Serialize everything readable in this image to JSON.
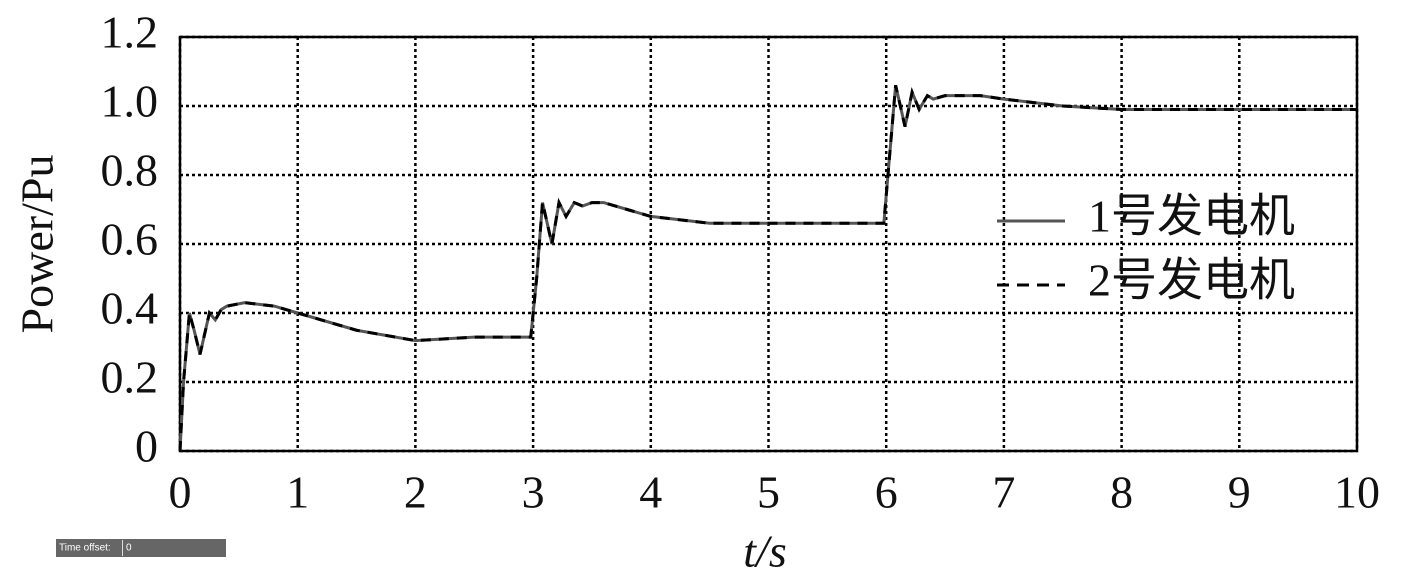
{
  "chart_data": {
    "type": "line",
    "xlabel": "t/s",
    "ylabel": "Power/Pu",
    "x": [
      0,
      0.03,
      0.08,
      0.12,
      0.17,
      0.21,
      0.25,
      0.3,
      0.35,
      0.4,
      0.55,
      0.8,
      1.0,
      1.5,
      2.0,
      2.5,
      2.98,
      3.03,
      3.08,
      3.12,
      3.16,
      3.22,
      3.28,
      3.35,
      3.42,
      3.5,
      3.6,
      3.8,
      4.0,
      4.5,
      5.0,
      5.5,
      5.98,
      6.03,
      6.08,
      6.12,
      6.16,
      6.22,
      6.28,
      6.35,
      6.4,
      6.5,
      6.8,
      7.0,
      7.5,
      8.0,
      9.0,
      10.0
    ],
    "series": [
      {
        "name": "1号发电机",
        "color": "#555555",
        "dash": false,
        "values": [
          0,
          0.2,
          0.4,
          0.35,
          0.28,
          0.34,
          0.4,
          0.38,
          0.41,
          0.42,
          0.43,
          0.42,
          0.4,
          0.35,
          0.32,
          0.33,
          0.33,
          0.5,
          0.72,
          0.66,
          0.6,
          0.72,
          0.68,
          0.72,
          0.71,
          0.72,
          0.72,
          0.7,
          0.68,
          0.66,
          0.66,
          0.66,
          0.66,
          0.86,
          1.06,
          1.0,
          0.94,
          1.04,
          0.99,
          1.03,
          1.02,
          1.03,
          1.03,
          1.02,
          1.0,
          0.99,
          0.99,
          0.99
        ]
      },
      {
        "name": "2号发电机",
        "color": "#000000",
        "dash": true,
        "values": [
          0,
          0.2,
          0.4,
          0.35,
          0.28,
          0.34,
          0.4,
          0.38,
          0.41,
          0.42,
          0.43,
          0.42,
          0.4,
          0.35,
          0.32,
          0.33,
          0.33,
          0.5,
          0.72,
          0.66,
          0.6,
          0.72,
          0.68,
          0.72,
          0.71,
          0.72,
          0.72,
          0.7,
          0.68,
          0.66,
          0.66,
          0.66,
          0.66,
          0.86,
          1.06,
          1.0,
          0.94,
          1.04,
          0.99,
          1.03,
          1.02,
          1.03,
          1.03,
          1.02,
          1.0,
          0.99,
          0.99,
          0.99
        ]
      }
    ],
    "xlim": [
      0,
      10
    ],
    "xticks": [
      0,
      1,
      2,
      3,
      4,
      5,
      6,
      7,
      8,
      9,
      10
    ],
    "ylim": [
      0,
      1.2
    ],
    "yticks": [
      0,
      0.2,
      0.4,
      0.6,
      0.8,
      {
        "value": 1,
        "label": "1.0"
      },
      1.2
    ],
    "grid": true,
    "legend": "right"
  },
  "time_offset": {
    "label": "Time offset:",
    "value": "0"
  }
}
